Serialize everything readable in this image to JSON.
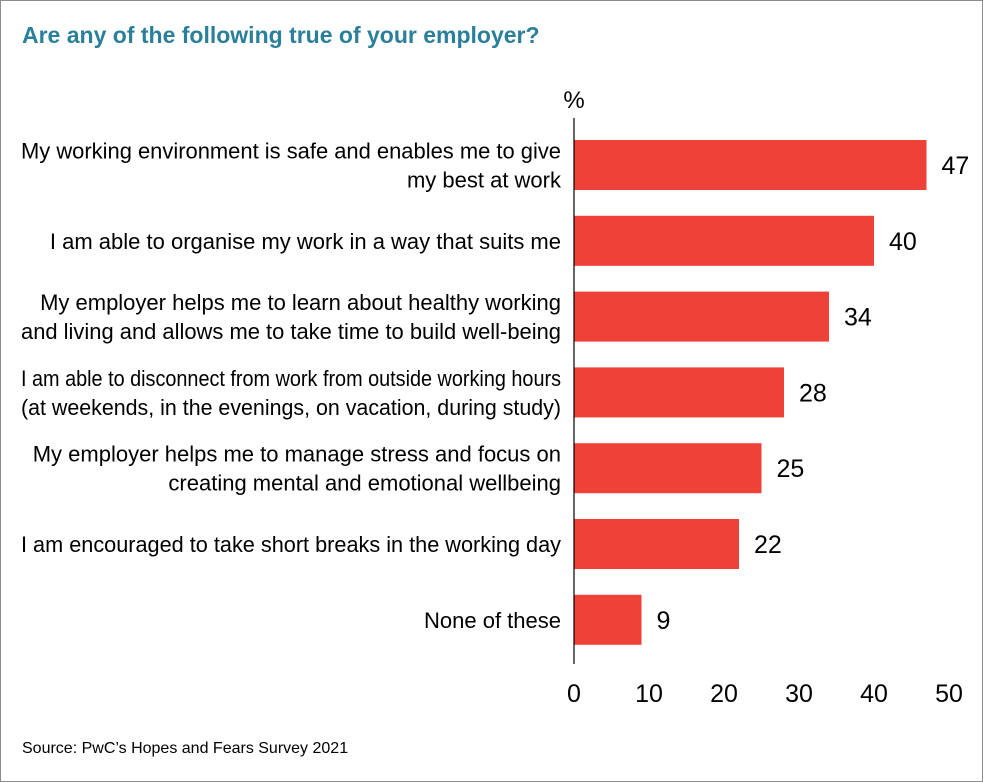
{
  "header": {
    "title": "Are any of the following true of your employer?"
  },
  "footer": {
    "source": "Source: PwC’s Hopes and Fears Survey 2021"
  },
  "chart_data": {
    "type": "bar",
    "orientation": "horizontal",
    "title": "Are any of the following true of your employer?",
    "unit_label": "%",
    "categories": [
      [
        "My working environment is safe and enables me to give",
        "my best at work"
      ],
      [
        "I am able to organise my work in a way that suits me"
      ],
      [
        "My employer helps me to learn about healthy working",
        "and living and allows me to take time to build well-being"
      ],
      [
        "I am able to disconnect from work from outside working hours",
        "(at weekends, in the evenings, on vacation, during study)"
      ],
      [
        "My employer helps me to  manage stress and focus on",
        "creating mental and emotional wellbeing"
      ],
      [
        "I am encouraged to take short breaks in the working day"
      ],
      [
        "None of these"
      ]
    ],
    "values": [
      47,
      40,
      34,
      28,
      25,
      22,
      9
    ],
    "xlim": [
      0,
      50
    ],
    "xticks": [
      0,
      10,
      20,
      30,
      40,
      50
    ],
    "grid": false,
    "bar_color": "#ee4137",
    "title_color": "#2a7f9a"
  }
}
